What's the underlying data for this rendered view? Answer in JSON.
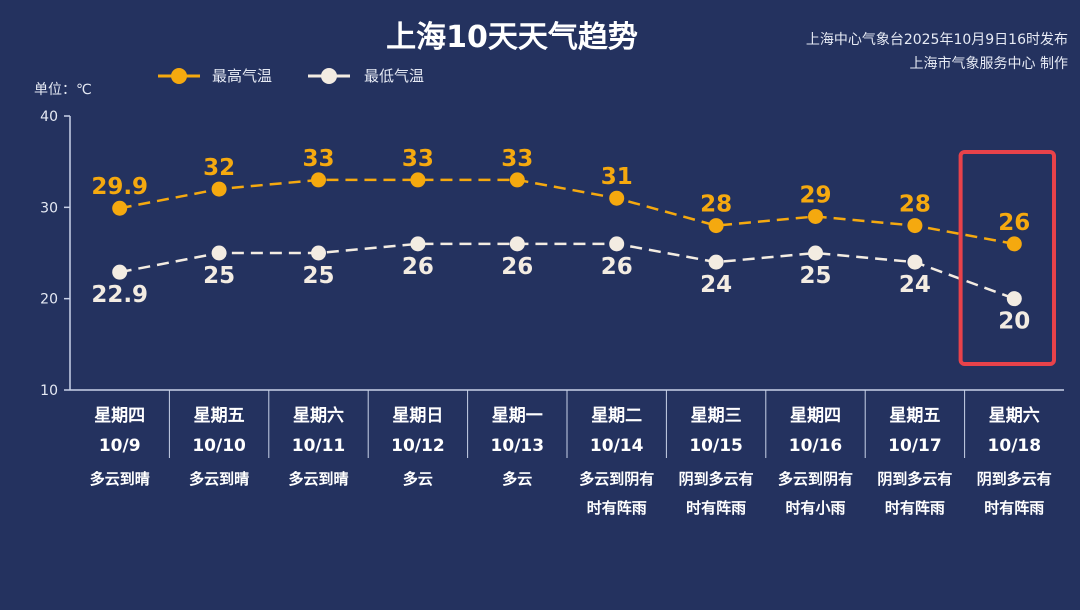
{
  "title": "上海10天天气趋势",
  "publisher": {
    "line1": "上海中心气象台2025年10月9日16时发布",
    "line2": "上海市气象服务中心 制作"
  },
  "unit_label": "单位：℃",
  "colors": {
    "background": "#24325f",
    "high": "#f5a90f",
    "low": "#f3ece2",
    "axis": "#c9d2e8",
    "highlight_box": "#e8424a"
  },
  "highlight": {
    "day_index": 9,
    "shape": "rounded-rectangle",
    "color": "#e8424a"
  },
  "chart_data": {
    "type": "line",
    "title": "上海10天天气趋势",
    "ylabel": "单位：℃",
    "ylim": [
      10,
      40
    ],
    "yticks": [
      10,
      20,
      30,
      40
    ],
    "grid": false,
    "legend_position": "top-left",
    "categories": [
      "10/9",
      "10/10",
      "10/11",
      "10/12",
      "10/13",
      "10/14",
      "10/15",
      "10/16",
      "10/17",
      "10/18"
    ],
    "weekdays": [
      "星期四",
      "星期五",
      "星期六",
      "星期日",
      "星期一",
      "星期二",
      "星期三",
      "星期四",
      "星期五",
      "星期六"
    ],
    "weather": [
      [
        "多云到晴"
      ],
      [
        "多云到晴"
      ],
      [
        "多云到晴"
      ],
      [
        "多云"
      ],
      [
        "多云"
      ],
      [
        "多云到阴有",
        "时有阵雨"
      ],
      [
        "阴到多云有",
        "时有阵雨"
      ],
      [
        "多云到阴有",
        "时有小雨"
      ],
      [
        "阴到多云有",
        "时有阵雨"
      ],
      [
        "阴到多云有",
        "时有阵雨"
      ]
    ],
    "series": [
      {
        "name": "最高气温",
        "labels": [
          "29.9",
          "32",
          "33",
          "33",
          "33",
          "31",
          "28",
          "29",
          "28",
          "26"
        ],
        "values": [
          29.9,
          32,
          33,
          33,
          33,
          31,
          28,
          29,
          28,
          26
        ]
      },
      {
        "name": "最低气温",
        "labels": [
          "22.9",
          "25",
          "25",
          "26",
          "26",
          "26",
          "24",
          "25",
          "24",
          "20"
        ],
        "values": [
          22.9,
          25,
          25,
          26,
          26,
          26,
          24,
          25,
          24,
          20
        ]
      }
    ]
  }
}
